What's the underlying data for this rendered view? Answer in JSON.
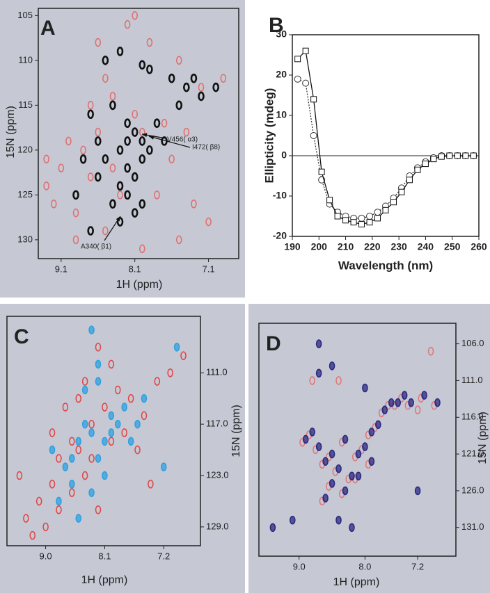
{
  "chart_data": [
    {
      "type": "scatter",
      "label": "A",
      "x_label": "1H (ppm)",
      "y_label": "15N (ppm)",
      "xlim": [
        9.41,
        6.69
      ],
      "ylim": [
        132.1,
        104.2
      ],
      "xticks": [
        9.1,
        8.1,
        7.1
      ],
      "yticks": [
        105,
        110,
        115,
        120,
        125,
        130
      ],
      "series": [
        {
          "color": "#e07070",
          "x": [
            9.3,
            9.2,
            8.9,
            8.7,
            8.5,
            8.2,
            7.9,
            7.5,
            7.2,
            6.9,
            9.0,
            8.6,
            8.1,
            7.7,
            7.4,
            8.8,
            8.4,
            8.0,
            7.6,
            9.1,
            8.3,
            7.8,
            7.3,
            8.9,
            8.5,
            8.7,
            7.5,
            8.0,
            8.4,
            7.1,
            8.1,
            9.3,
            8.6
          ],
          "values": [
            124,
            126,
            130,
            115,
            112,
            106,
            108,
            110,
            113,
            112,
            119,
            118,
            116,
            117,
            118,
            120,
            122,
            118,
            121,
            122,
            125,
            125,
            126,
            127,
            129,
            123,
            130,
            131,
            114,
            128,
            105,
            121,
            108
          ]
        },
        {
          "color": "#111111",
          "x": [
            8.5,
            8.3,
            8.0,
            7.9,
            7.6,
            7.4,
            7.2,
            8.7,
            8.4,
            8.2,
            8.1,
            7.8,
            7.5,
            8.6,
            8.3,
            8.0,
            7.7,
            8.8,
            8.5,
            8.2,
            8.1,
            8.0,
            7.9,
            8.6,
            8.3,
            8.2,
            8.4,
            8.1,
            7.0,
            7.3,
            8.9,
            8.7,
            8.3,
            8.0,
            8.2
          ],
          "values": [
            110,
            109,
            110.5,
            111,
            112,
            113,
            114,
            116,
            115,
            117,
            118,
            117,
            115,
            119,
            120,
            119,
            119,
            121,
            121,
            122,
            123,
            121,
            120,
            123,
            124,
            125,
            126,
            127,
            113,
            112,
            125,
            129,
            128,
            126,
            119
          ]
        }
      ],
      "annotations": [
        {
          "text": "V456( α3)"
        },
        {
          "text": "I472( β8)"
        },
        {
          "text": "A340( β1)"
        }
      ]
    },
    {
      "type": "line",
      "label": "B",
      "x_label": "Wavelength (nm)",
      "y_label": "Ellipticity (mdeg)",
      "xlim": [
        190,
        260
      ],
      "ylim": [
        -20,
        30
      ],
      "xticks": [
        190,
        200,
        210,
        220,
        230,
        240,
        250,
        260
      ],
      "yticks": [
        -20,
        -10,
        0,
        10,
        20,
        30
      ],
      "hline": 0,
      "x": [
        192,
        195,
        198,
        201,
        204,
        207,
        210,
        213,
        216,
        219,
        222,
        225,
        228,
        231,
        234,
        237,
        240,
        243,
        246,
        249,
        252,
        255,
        258
      ],
      "series": [
        {
          "color": "#333333",
          "marker": "circle",
          "dash": "2,2",
          "values": [
            19,
            18,
            5,
            -6,
            -12,
            -14,
            -15,
            -15.5,
            -15.5,
            -15,
            -14,
            -12.5,
            -10.5,
            -8,
            -5,
            -3,
            -1.5,
            -0.5,
            0,
            0,
            0,
            0,
            0
          ]
        },
        {
          "color": "#111111",
          "marker": "square",
          "dash": "none",
          "values": [
            24,
            26,
            14,
            -4,
            -11,
            -15,
            -16,
            -16.5,
            -17,
            -16.5,
            -15.5,
            -13.5,
            -11.5,
            -9,
            -6,
            -3.5,
            -2,
            -0.8,
            -0.2,
            0,
            0,
            0,
            0
          ]
        }
      ]
    },
    {
      "type": "scatter",
      "label": "C",
      "x_label": "1H (ppm)",
      "y_label": "15N (ppm)",
      "xlim": [
        9.59,
        6.64
      ],
      "ylim": [
        131.2,
        104.4
      ],
      "xticks": [
        {
          "value": 9,
          "label": "9.0"
        },
        8.1,
        7.2
      ],
      "yticks": [
        {
          "value": 111,
          "label": "111.0"
        },
        {
          "value": 117,
          "label": "117.0"
        },
        {
          "value": 123,
          "label": "123.0"
        },
        {
          "value": 129,
          "label": "129.0"
        }
      ],
      "series": [
        {
          "color": "#e04848",
          "x": [
            9.3,
            9.1,
            8.9,
            8.8,
            8.6,
            8.5,
            8.3,
            8.1,
            7.9,
            7.7,
            7.5,
            7.3,
            7.1,
            6.9,
            8.7,
            8.4,
            8.2,
            8.0,
            7.8,
            7.6,
            9.0,
            8.8,
            8.6,
            8.4,
            8.2,
            8.9,
            9.2,
            8.5,
            8.3,
            8.0,
            7.4,
            9.4
          ],
          "values": [
            128,
            126,
            124,
            121,
            119,
            120,
            117,
            115,
            113,
            114,
            116,
            112,
            111,
            109,
            115,
            112,
            108,
            110,
            118,
            120,
            129,
            127,
            125,
            123,
            127,
            118,
            130,
            114,
            121,
            119,
            124,
            123
          ]
        },
        {
          "color": "#30a0e0",
          "x": [
            8.9,
            8.7,
            8.5,
            8.4,
            8.3,
            8.2,
            8.1,
            8.0,
            7.9,
            7.8,
            8.6,
            8.3,
            8.1,
            7.7,
            7.5,
            8.4,
            8.2,
            8.0,
            7.6,
            7.2,
            8.8,
            8.5,
            8.2,
            8.3,
            7.0,
            8.6
          ],
          "values": [
            120,
            122,
            119,
            117,
            118,
            121,
            119,
            116,
            117,
            115,
            124,
            125,
            123,
            119,
            114,
            113,
            112,
            118,
            117,
            122,
            126,
            128,
            110,
            106,
            108,
            121
          ]
        }
      ]
    },
    {
      "type": "scatter",
      "label": "D",
      "x_label": "1H (ppm)",
      "y_label": "15N (ppm)",
      "xlim": [
        9.61,
        6.62
      ],
      "ylim": [
        134.9,
        103.2
      ],
      "xticks": [
        {
          "value": 9,
          "label": "9.0"
        },
        {
          "value": 8,
          "label": "8.0"
        },
        7.2
      ],
      "yticks": [
        {
          "value": 106,
          "label": "106.0"
        },
        {
          "value": 111,
          "label": "111.0"
        },
        {
          "value": 116,
          "label": "116.0"
        },
        {
          "value": 121,
          "label": "121.0"
        },
        {
          "value": 126,
          "label": "126.0"
        },
        {
          "value": 131,
          "label": "131.0"
        }
      ],
      "series": [
        {
          "color": "#e07878",
          "x": [
            8.95,
            8.75,
            8.65,
            8.55,
            8.45,
            8.35,
            8.25,
            8.15,
            8.05,
            7.95,
            7.85,
            7.75,
            7.65,
            7.55,
            7.45,
            7.35,
            7.15,
            6.95,
            8.85,
            8.55,
            8.35,
            8.15,
            7.95,
            8.65,
            7.2,
            7.0,
            8.8,
            8.4
          ],
          "values": [
            119.4,
            120.4,
            122.4,
            121.4,
            123.4,
            119.4,
            124.4,
            121.4,
            120.4,
            118.4,
            117.4,
            115.4,
            114.4,
            114.4,
            113.4,
            114.4,
            113.4,
            114.4,
            118.4,
            125.4,
            126.4,
            124.4,
            122.4,
            127.4,
            115,
            107,
            111,
            111
          ]
        },
        {
          "color": "#2c2a80",
          "x": [
            8.9,
            8.7,
            8.6,
            8.5,
            8.4,
            8.3,
            8.2,
            8.1,
            8.0,
            7.9,
            7.8,
            7.7,
            7.6,
            7.5,
            7.4,
            7.3,
            7.1,
            6.9,
            8.8,
            8.5,
            8.3,
            8.1,
            7.9,
            8.6,
            8.4,
            8.2,
            9.4,
            9.1,
            8.7,
            8.0,
            7.2,
            8.5,
            8.7
          ],
          "values": [
            119,
            120,
            122,
            121,
            123,
            119,
            124,
            121,
            120,
            118,
            117,
            115,
            114,
            114,
            113,
            114,
            113,
            114,
            118,
            125,
            126,
            124,
            122,
            127,
            130,
            131,
            131,
            130,
            110,
            112,
            126,
            109,
            106
          ]
        }
      ]
    }
  ]
}
